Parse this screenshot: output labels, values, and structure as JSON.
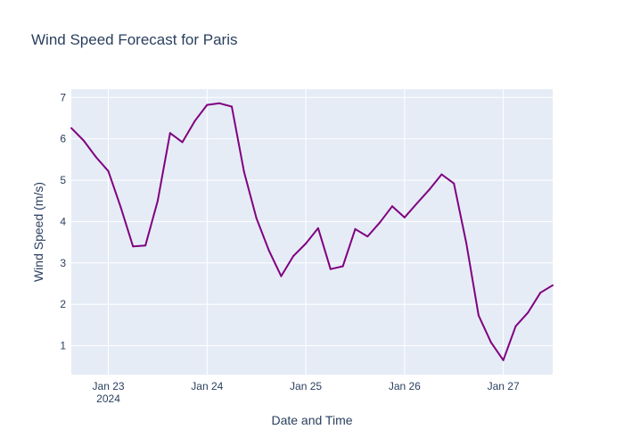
{
  "chart_data": {
    "type": "line",
    "title": "Wind Speed Forecast for Paris",
    "xlabel": "Date and Time",
    "ylabel": "Wind Speed (m/s)",
    "x_tick_labels": [
      "Jan 23",
      "Jan 24",
      "Jan 25",
      "Jan 26",
      "Jan 27"
    ],
    "x_tick_year": "2024",
    "y_tick_labels": [
      "1",
      "2",
      "3",
      "4",
      "5",
      "6",
      "7"
    ],
    "ylim": [
      0.3,
      7.2
    ],
    "xlim": [
      "2024-01-22 15:00",
      "2024-01-27 12:00"
    ],
    "grid": true,
    "colors": {
      "line": "#800080",
      "plot_bg": "#e5ecf6",
      "grid": "#ffffff",
      "text": "#2a3f5f"
    },
    "series": [
      {
        "x": [
          "2024-01-22 15:00",
          "2024-01-22 18:00",
          "2024-01-22 21:00",
          "2024-01-23 00:00",
          "2024-01-23 03:00",
          "2024-01-23 06:00",
          "2024-01-23 09:00",
          "2024-01-23 12:00",
          "2024-01-23 15:00",
          "2024-01-23 18:00",
          "2024-01-23 21:00",
          "2024-01-24 00:00",
          "2024-01-24 03:00",
          "2024-01-24 06:00",
          "2024-01-24 09:00",
          "2024-01-24 12:00",
          "2024-01-24 15:00",
          "2024-01-24 18:00",
          "2024-01-24 21:00",
          "2024-01-25 00:00",
          "2024-01-25 03:00",
          "2024-01-25 06:00",
          "2024-01-25 09:00",
          "2024-01-25 12:00",
          "2024-01-25 15:00",
          "2024-01-25 18:00",
          "2024-01-25 21:00",
          "2024-01-26 00:00",
          "2024-01-26 03:00",
          "2024-01-26 06:00",
          "2024-01-26 09:00",
          "2024-01-26 12:00",
          "2024-01-26 15:00",
          "2024-01-26 18:00",
          "2024-01-26 21:00",
          "2024-01-27 00:00",
          "2024-01-27 03:00",
          "2024-01-27 06:00",
          "2024-01-27 09:00",
          "2024-01-27 12:00"
        ],
        "y": [
          6.26,
          5.96,
          5.56,
          5.22,
          4.35,
          3.4,
          3.42,
          4.5,
          6.14,
          5.92,
          6.43,
          6.82,
          6.86,
          6.78,
          5.2,
          4.08,
          3.31,
          2.68,
          3.17,
          3.47,
          3.84,
          2.85,
          2.92,
          3.82,
          3.64,
          3.98,
          4.37,
          4.1,
          4.44,
          4.77,
          5.14,
          4.92,
          3.48,
          1.73,
          1.08,
          0.65,
          1.47,
          1.8,
          2.28,
          2.46
        ]
      }
    ]
  }
}
